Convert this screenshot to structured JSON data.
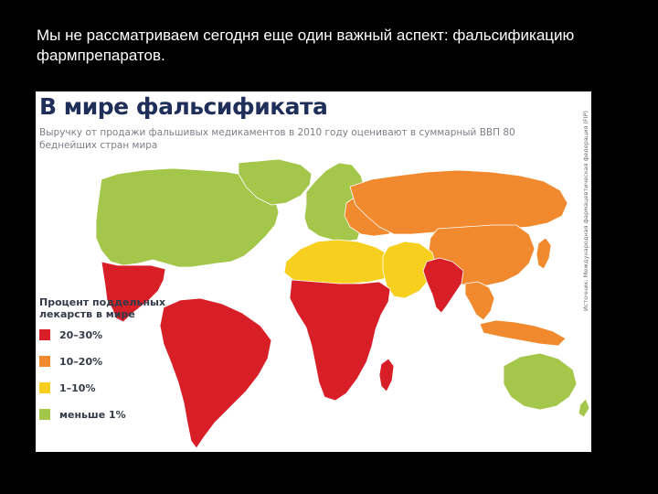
{
  "slide": {
    "text": "Мы не рассматриваем сегодня еще один важный аспект: фальсификацию фармпрепаратов."
  },
  "map": {
    "title": "В мире фальсификата",
    "subtitle": "Выручку от продажи фальшивых медикаментов в 2010 году оценивают в суммарный ВВП 80 беднейших стран мира",
    "source": "Источник: Международная фармацевтическая федерация (FIP)",
    "colors": {
      "20-30": "#d81e27",
      "10-20": "#f18a2e",
      "1-10": "#f7cf1f",
      "lt1": "#a4c64a"
    },
    "legend": {
      "title": "Процент поддельных лекарств в мире",
      "items": [
        {
          "label": "20–30%",
          "key": "20-30"
        },
        {
          "label": "10–20%",
          "key": "10-20"
        },
        {
          "label": "1–10%",
          "key": "1-10"
        },
        {
          "label": "меньше 1%",
          "key": "lt1"
        }
      ]
    },
    "regions": [
      {
        "name": "north-america",
        "class": "lt1"
      },
      {
        "name": "greenland",
        "class": "lt1"
      },
      {
        "name": "central-america",
        "class": "20-30"
      },
      {
        "name": "south-america",
        "class": "20-30"
      },
      {
        "name": "western-europe",
        "class": "lt1"
      },
      {
        "name": "eastern-europe",
        "class": "10-20"
      },
      {
        "name": "russia",
        "class": "10-20"
      },
      {
        "name": "china",
        "class": "10-20"
      },
      {
        "name": "north-africa",
        "class": "1-10"
      },
      {
        "name": "middle-east",
        "class": "1-10"
      },
      {
        "name": "sub-saharan-africa",
        "class": "20-30"
      },
      {
        "name": "madagascar",
        "class": "20-30"
      },
      {
        "name": "south-asia",
        "class": "20-30"
      },
      {
        "name": "southeast-asia",
        "class": "10-20"
      },
      {
        "name": "indonesia",
        "class": "10-20"
      },
      {
        "name": "japan",
        "class": "10-20"
      },
      {
        "name": "australia",
        "class": "lt1"
      },
      {
        "name": "new-zealand",
        "class": "lt1"
      }
    ]
  }
}
